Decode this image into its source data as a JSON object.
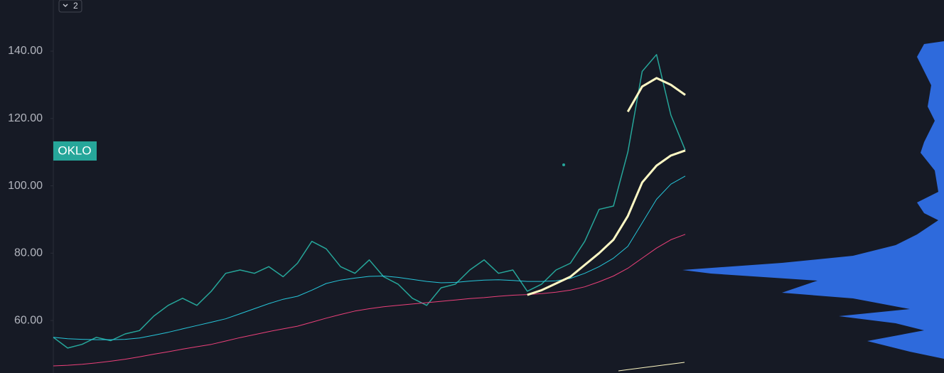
{
  "chart_data": {
    "type": "line",
    "symbol": "OKLO",
    "badge": "2",
    "categories": [
      null,
      null,
      null,
      null,
      null,
      null,
      null,
      null,
      null,
      null,
      null,
      null,
      null,
      null,
      null,
      null,
      null,
      null,
      null,
      null,
      null,
      null,
      null,
      null,
      null,
      null,
      null,
      null,
      null,
      null,
      null,
      null,
      null,
      null,
      null,
      null,
      null,
      null,
      null,
      null,
      null,
      null,
      null,
      null,
      null
    ],
    "series": [
      {
        "color": "#26a69a",
        "width": 1.5,
        "values": [
          55,
          51.8,
          52.9,
          55,
          54,
          56,
          57,
          61.3,
          64.5,
          66.6,
          64.5,
          68.7,
          74,
          75,
          74,
          76,
          73,
          77,
          83.5,
          81.3,
          76,
          74,
          78,
          73,
          70.8,
          66.6,
          64.5,
          69.7,
          70.8,
          75,
          78,
          74,
          75,
          68.7,
          70.8,
          75,
          77,
          83.5,
          93,
          94,
          110,
          134,
          139,
          121,
          110.6
        ]
      },
      {
        "color": "#26c6da",
        "width": 1,
        "values": [
          55,
          54.6,
          54.4,
          54.3,
          54.3,
          54.4,
          54.8,
          55.6,
          56.5,
          57.5,
          58.5,
          59.5,
          60.5,
          62,
          63.5,
          65,
          66.3,
          67.2,
          69,
          71,
          72,
          72.6,
          73.1,
          73.2,
          72.8,
          72.2,
          71.6,
          71.2,
          71.3,
          71.7,
          72,
          72.1,
          71.9,
          71.6,
          71.6,
          71.8,
          72.5,
          74,
          76,
          78.5,
          82,
          89,
          96,
          100.5,
          102.9
        ]
      },
      {
        "color": "#ec407a",
        "width": 1,
        "values": [
          46.5,
          46.7,
          47,
          47.4,
          47.9,
          48.5,
          49.2,
          50,
          50.7,
          51.5,
          52.2,
          52.9,
          53.9,
          54.9,
          55.8,
          56.7,
          57.5,
          58.3,
          59.5,
          60.7,
          61.8,
          62.8,
          63.5,
          64.1,
          64.5,
          64.9,
          65.3,
          65.7,
          66.1,
          66.5,
          66.8,
          67.2,
          67.5,
          67.7,
          68,
          68.4,
          69,
          70,
          71.5,
          73.2,
          75.5,
          78.5,
          81.5,
          84,
          85.6
        ]
      },
      {
        "color": "#fff9c4",
        "width": 3,
        "values": [
          null,
          null,
          null,
          null,
          null,
          null,
          null,
          null,
          null,
          null,
          null,
          null,
          null,
          null,
          null,
          null,
          null,
          null,
          null,
          null,
          null,
          null,
          null,
          null,
          null,
          null,
          null,
          null,
          null,
          null,
          null,
          null,
          null,
          67.6,
          69,
          71,
          73,
          76.5,
          80,
          84,
          91,
          101,
          106,
          109,
          110.5
        ]
      },
      {
        "color": "#fff9c4",
        "width": 3,
        "values": [
          null,
          null,
          null,
          null,
          null,
          null,
          null,
          null,
          null,
          null,
          null,
          null,
          null,
          null,
          null,
          null,
          null,
          null,
          null,
          null,
          null,
          null,
          null,
          null,
          null,
          null,
          null,
          null,
          null,
          null,
          null,
          null,
          null,
          null,
          null,
          null,
          null,
          null,
          null,
          null,
          122,
          129.5,
          132,
          130,
          127
        ]
      }
    ],
    "ylim": [
      44.4,
      155.2
    ],
    "yticks": [
      {
        "value": 60,
        "label": "60.00"
      },
      {
        "value": 80,
        "label": "80.00"
      },
      {
        "value": 100,
        "label": "100.00"
      },
      {
        "value": 120,
        "label": "120.00"
      },
      {
        "value": 140,
        "label": "140.00"
      }
    ]
  }
}
